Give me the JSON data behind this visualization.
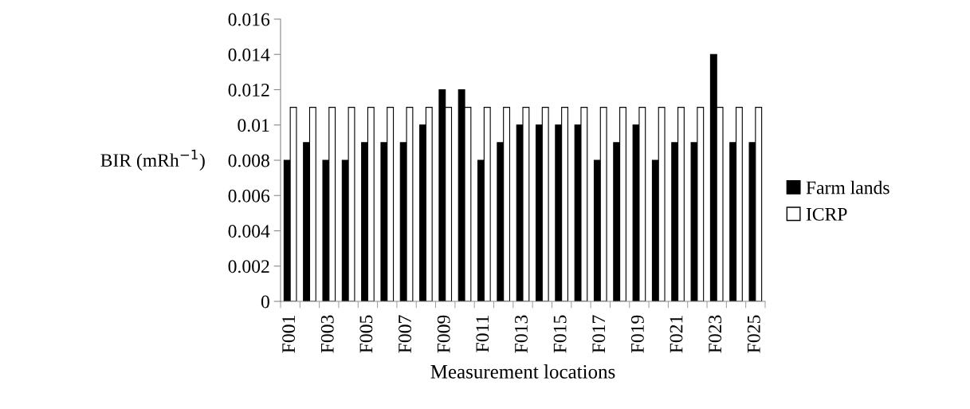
{
  "chart_data": {
    "type": "bar",
    "xlabel": "Measurement locations",
    "ylabel": "BIR (mRh$^{−1}$)",
    "categories": [
      "F001",
      null,
      "F003",
      null,
      "F005",
      null,
      "F007",
      null,
      "F009",
      null,
      "F011",
      null,
      "F013",
      null,
      "F015",
      null,
      "F017",
      null,
      "F019",
      null,
      "F021",
      null,
      "F023",
      null,
      "F025"
    ],
    "series": [
      {
        "name": "Farm lands",
        "color": "#000000",
        "values": [
          0.008,
          0.009,
          0.008,
          0.008,
          0.009,
          0.009,
          0.009,
          0.01,
          0.012,
          0.012,
          0.008,
          0.009,
          0.01,
          0.01,
          0.01,
          0.01,
          0.008,
          0.009,
          0.01,
          0.008,
          0.009,
          0.009,
          0.014,
          0.009,
          0.009
        ]
      },
      {
        "name": "ICRP",
        "color": "#ffffff",
        "values": [
          0.011,
          0.011,
          0.011,
          0.011,
          0.011,
          0.011,
          0.011,
          0.011,
          0.011,
          0.011,
          0.011,
          0.011,
          0.011,
          0.011,
          0.011,
          0.011,
          0.011,
          0.011,
          0.011,
          0.011,
          0.011,
          0.011,
          0.011,
          0.011,
          0.011
        ]
      }
    ],
    "ylim": [
      0,
      0.016
    ],
    "yticks": [
      0,
      0.002,
      0.004,
      0.006,
      0.008,
      0.01,
      0.012,
      0.014,
      0.016
    ],
    "grid": false,
    "legend": "right"
  }
}
